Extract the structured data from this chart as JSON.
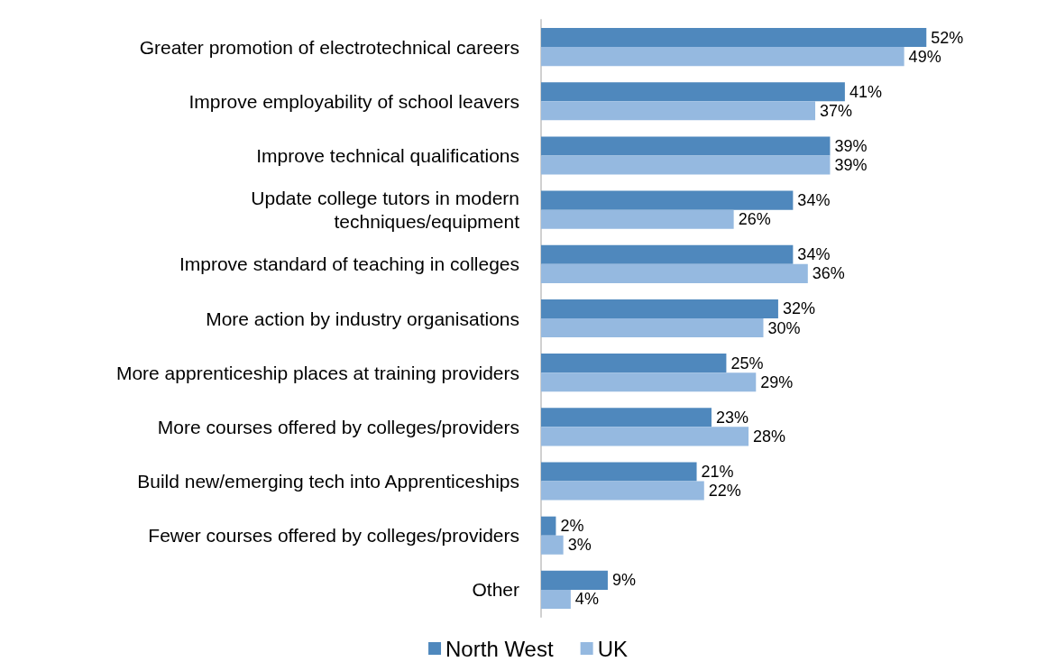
{
  "chart_data": {
    "type": "bar",
    "orientation": "horizontal",
    "categories": [
      "Greater promotion of electrotechnical careers",
      "Improve employability of school leavers",
      "Improve technical qualifications",
      "Update college tutors in modern techniques/equipment",
      "Improve standard of teaching in colleges",
      "More action by industry organisations",
      "More apprenticeship places at training providers",
      "More courses offered by colleges/providers",
      "Build new/emerging tech into Apprenticeships",
      "Fewer courses offered by colleges/providers",
      "Other"
    ],
    "series": [
      {
        "name": "North West",
        "color": "#4f88bd",
        "values": [
          52,
          41,
          39,
          34,
          34,
          32,
          25,
          23,
          21,
          2,
          9
        ],
        "value_labels": [
          "52%",
          "41%",
          "39%",
          "34%",
          "34%",
          "32%",
          "25%",
          "23%",
          "21%",
          "2%",
          "9%"
        ]
      },
      {
        "name": "UK",
        "color": "#95b9e0",
        "values": [
          49,
          37,
          39,
          26,
          36,
          30,
          29,
          28,
          22,
          3,
          4
        ],
        "value_labels": [
          "49%",
          "37%",
          "39%",
          "26%",
          "36%",
          "30%",
          "29%",
          "28%",
          "22%",
          "3%",
          "4%"
        ]
      }
    ],
    "legend": "bottom"
  }
}
